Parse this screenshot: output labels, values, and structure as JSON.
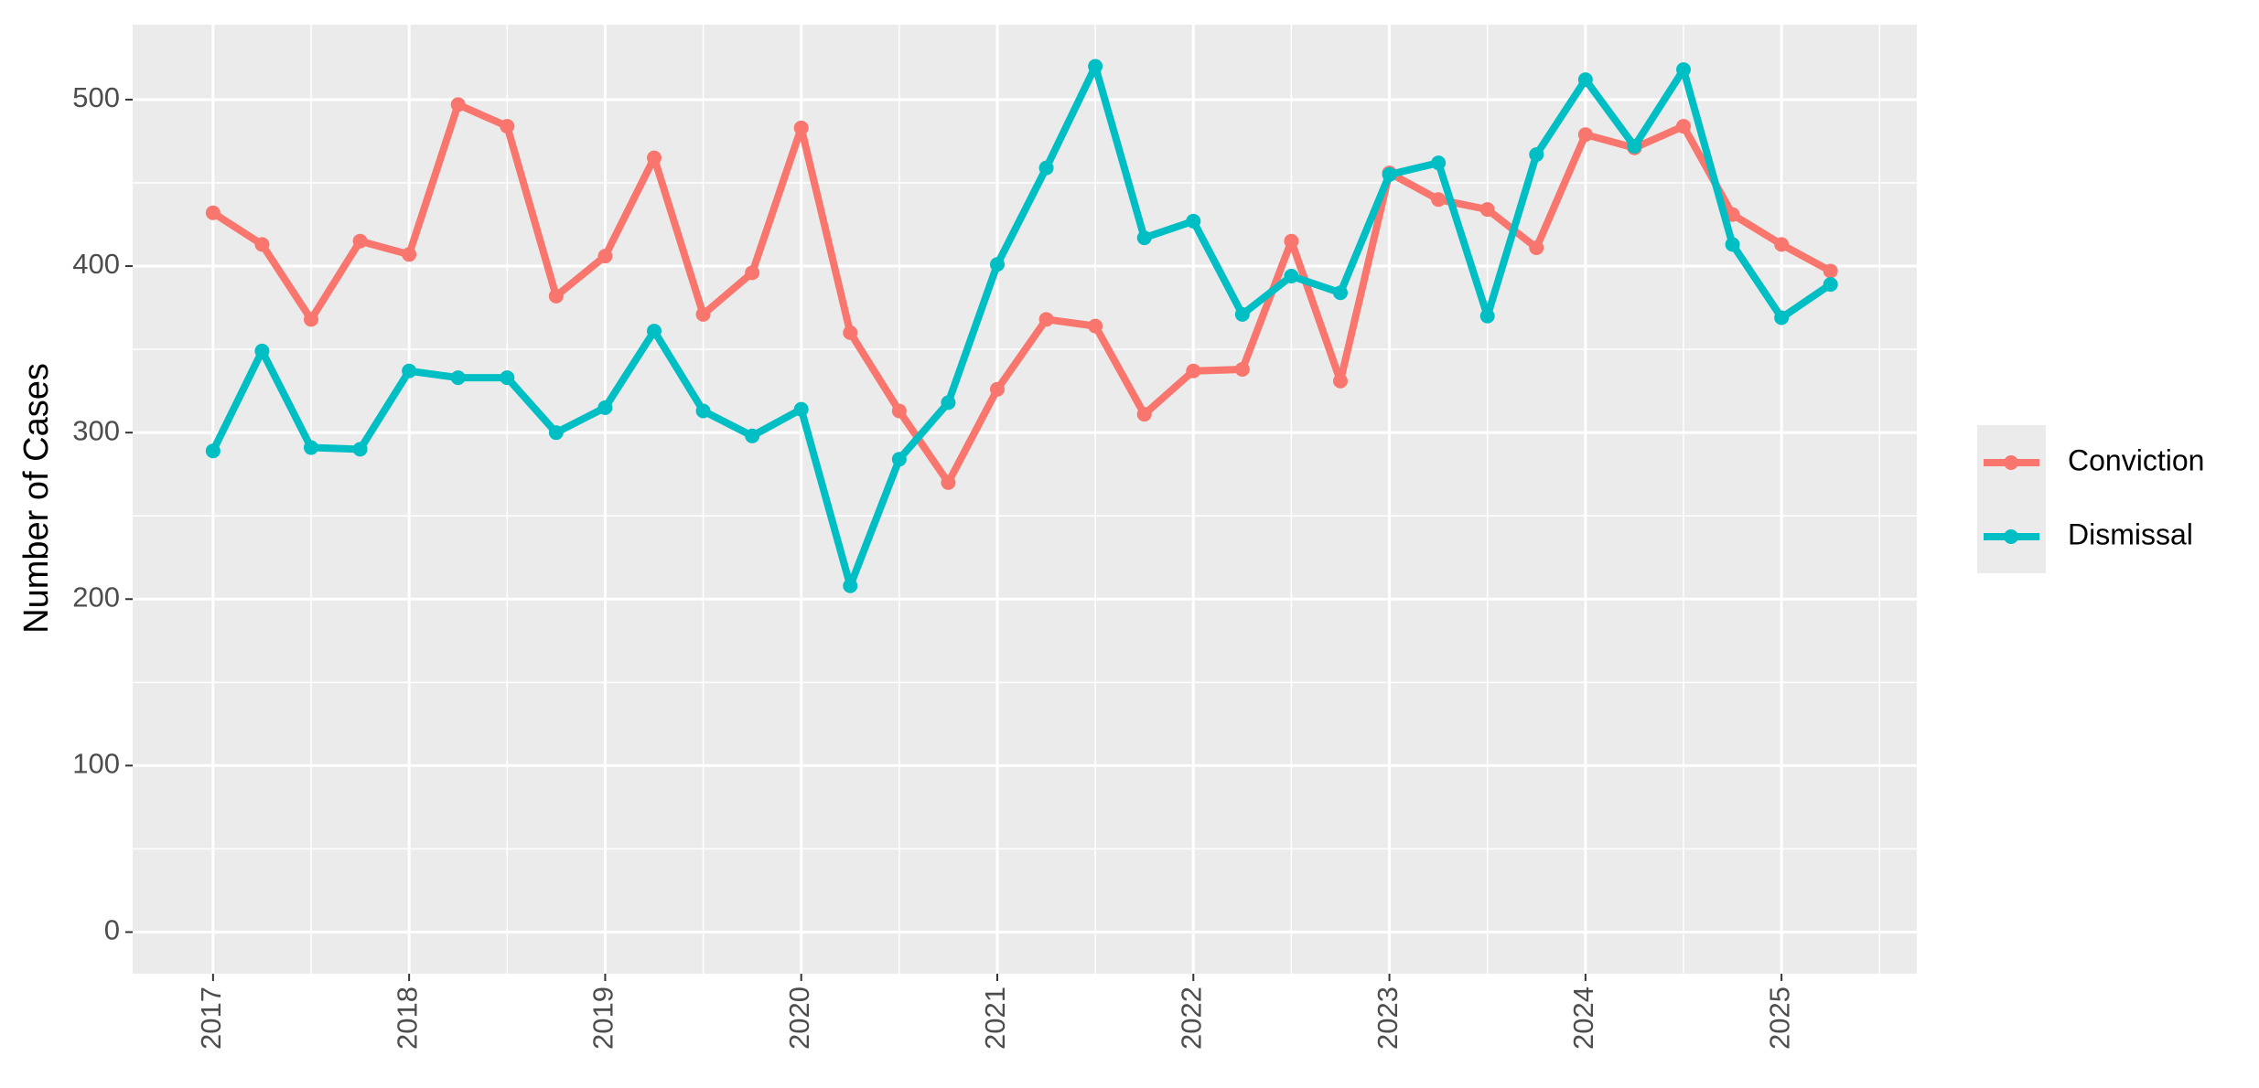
{
  "chart_data": {
    "type": "line",
    "y_label": "Number of Cases",
    "x": [
      2017,
      2017.25,
      2017.5,
      2017.75,
      2018,
      2018.25,
      2018.5,
      2018.75,
      2019,
      2019.25,
      2019.5,
      2019.75,
      2020,
      2020.25,
      2020.5,
      2020.75,
      2021,
      2021.25,
      2021.5,
      2021.75,
      2022,
      2022.25,
      2022.5,
      2022.75,
      2023,
      2023.25,
      2023.5,
      2023.75,
      2024,
      2024.25,
      2024.5,
      2024.75,
      2025,
      2025.25
    ],
    "series": [
      {
        "name": "Conviction",
        "color": "#F8766D",
        "values": [
          432,
          413,
          368,
          415,
          407,
          497,
          484,
          382,
          406,
          465,
          371,
          396,
          483,
          360,
          313,
          270,
          326,
          368,
          364,
          311,
          337,
          338,
          415,
          331,
          456,
          440,
          434,
          411,
          479,
          471,
          484,
          431,
          413,
          397
        ]
      },
      {
        "name": "Dismissal",
        "color": "#00BFC4",
        "values": [
          289,
          349,
          291,
          290,
          337,
          333,
          333,
          300,
          315,
          361,
          313,
          298,
          314,
          208,
          284,
          318,
          401,
          459,
          520,
          417,
          427,
          371,
          394,
          384,
          455,
          462,
          370,
          467,
          512,
          472,
          518,
          413,
          369,
          389
        ]
      }
    ],
    "xlim": [
      2016.59,
      2025.69
    ],
    "xticks": [
      2017,
      2018,
      2019,
      2020,
      2021,
      2022,
      2023,
      2024,
      2025
    ],
    "ylim": [
      -25,
      545
    ],
    "yticks": [
      0,
      100,
      200,
      300,
      400,
      500
    ],
    "grid": true,
    "legend": "right"
  }
}
